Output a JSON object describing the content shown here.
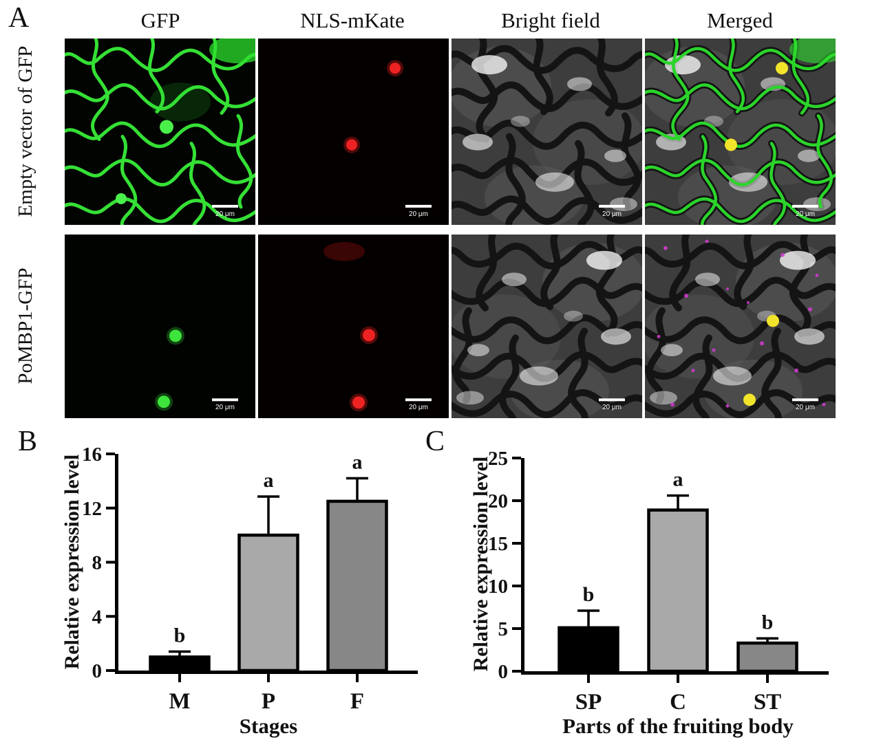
{
  "panel_a": {
    "label": "A",
    "column_headers": [
      "GFP",
      "NLS-mKate",
      "Bright field",
      "Merged"
    ],
    "row_labels": [
      "Empty vector of GFP",
      "PoMBP1-GFP"
    ],
    "scale_bar": "20 μm"
  },
  "chart_data": [
    {
      "id": "B",
      "panel_label": "B",
      "type": "bar",
      "categories": [
        "M",
        "P",
        "F"
      ],
      "values": [
        1.0,
        10.0,
        12.5
      ],
      "errors": [
        0.4,
        2.85,
        1.7
      ],
      "sig_letters": [
        "b",
        "a",
        "a"
      ],
      "bar_colors": [
        "#000000",
        "#a9a9a9",
        "#878787"
      ],
      "title": "",
      "xlabel": "Stages",
      "ylabel": "Relative expression level",
      "ylim": [
        0,
        16
      ],
      "yticks": [
        0,
        4,
        8,
        12,
        16
      ],
      "grid": false,
      "axis_color": "#000000"
    },
    {
      "id": "C",
      "panel_label": "C",
      "type": "bar",
      "categories": [
        "SP",
        "C",
        "ST"
      ],
      "values": [
        5.1,
        18.9,
        3.3
      ],
      "errors": [
        2.0,
        1.7,
        0.55
      ],
      "sig_letters": [
        "b",
        "a",
        "b"
      ],
      "bar_colors": [
        "#000000",
        "#a9a9a9",
        "#878787"
      ],
      "title": "",
      "xlabel": "Parts of the fruiting body",
      "ylabel": "Relative expression level",
      "ylim": [
        0,
        25
      ],
      "yticks": [
        0,
        5,
        10,
        15,
        20,
        25
      ],
      "grid": false,
      "axis_color": "#000000"
    }
  ]
}
